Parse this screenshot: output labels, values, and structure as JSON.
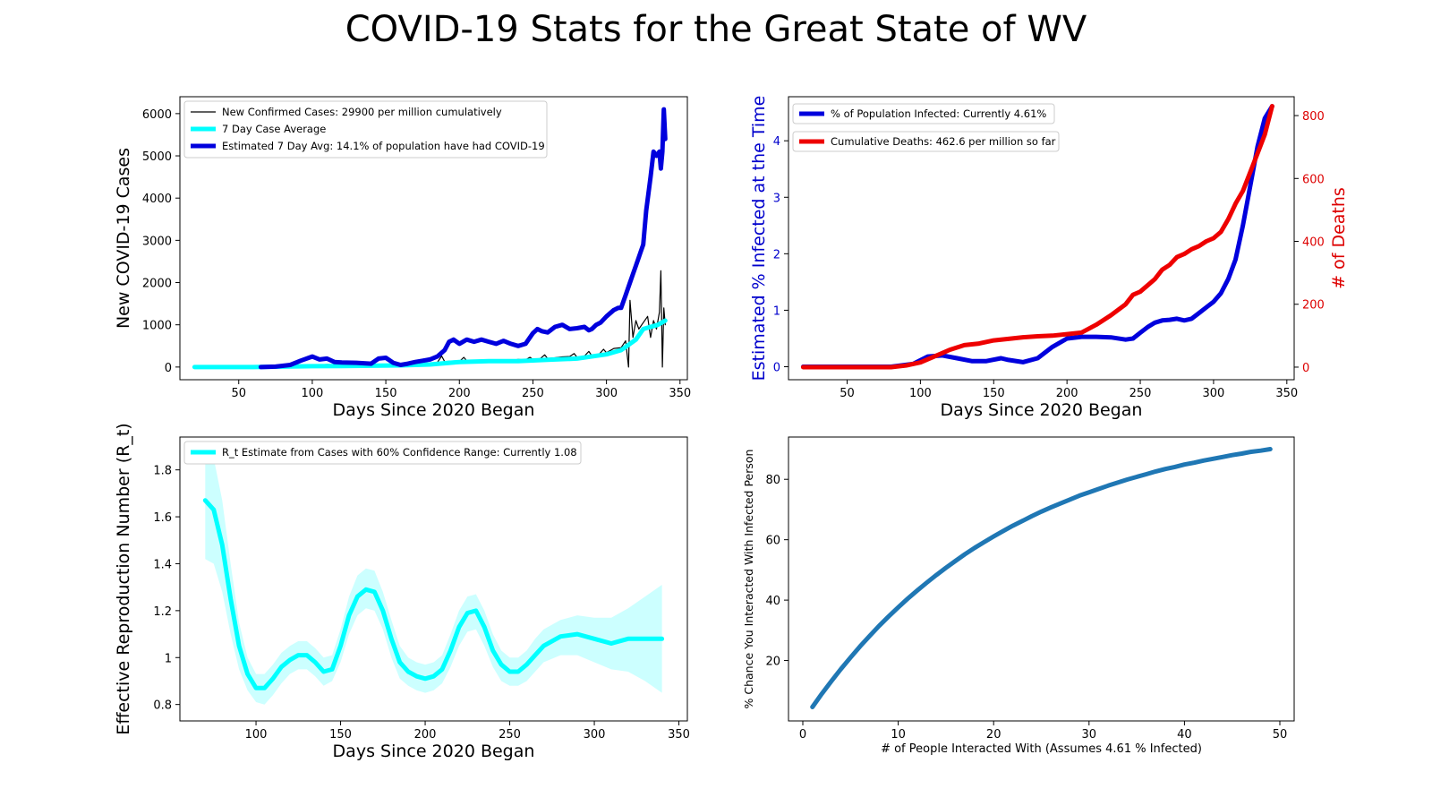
{
  "title": "COVID-19 Stats for the Great State of WV",
  "chart_data": [
    {
      "type": "line",
      "xlabel": "Days Since 2020 Began",
      "ylabel": "New COVID-19 Cases",
      "xlim": [
        10,
        355
      ],
      "ylim": [
        -300,
        6400
      ],
      "xticks": [
        50,
        100,
        150,
        200,
        250,
        300,
        350
      ],
      "yticks": [
        0,
        1000,
        2000,
        3000,
        4000,
        5000,
        6000
      ],
      "legend_position": "upper-left",
      "series": [
        {
          "name": "New Confirmed Cases: 29900 per million cumulatively",
          "color": "#000000",
          "x": [
            65,
            80,
            95,
            110,
            125,
            140,
            150,
            165,
            175,
            185,
            188,
            190,
            195,
            200,
            203,
            205,
            210,
            215,
            220,
            225,
            230,
            235,
            240,
            245,
            248,
            250,
            255,
            258,
            260,
            265,
            270,
            275,
            278,
            280,
            285,
            288,
            290,
            295,
            298,
            300,
            305,
            310,
            313,
            315,
            316,
            318,
            320,
            322,
            325,
            328,
            330,
            332,
            334,
            336,
            337,
            338,
            339,
            340
          ],
          "y": [
            5,
            15,
            40,
            60,
            50,
            45,
            60,
            50,
            70,
            110,
            260,
            130,
            140,
            130,
            230,
            150,
            140,
            160,
            170,
            150,
            170,
            160,
            180,
            170,
            230,
            180,
            200,
            290,
            200,
            220,
            240,
            250,
            320,
            230,
            260,
            370,
            270,
            300,
            420,
            340,
            440,
            460,
            620,
            0,
            1580,
            700,
            1100,
            900,
            1050,
            1200,
            700,
            1100,
            900,
            1300,
            2280,
            0,
            1400,
            1000
          ]
        },
        {
          "name": "7 Day Case Average",
          "color": "#00ffff",
          "x": [
            20,
            40,
            60,
            80,
            100,
            120,
            140,
            160,
            180,
            200,
            220,
            240,
            260,
            280,
            300,
            310,
            320,
            325,
            330,
            335,
            340
          ],
          "y": [
            0,
            0,
            0,
            10,
            20,
            25,
            30,
            40,
            60,
            120,
            140,
            140,
            170,
            200,
            300,
            400,
            650,
            900,
            950,
            1000,
            1100
          ]
        },
        {
          "name": "Estimated 7 Day Avg: 14.1% of population have had COVID-19",
          "color": "#0000dd",
          "x": [
            65,
            75,
            85,
            92,
            100,
            105,
            110,
            115,
            120,
            130,
            140,
            145,
            150,
            155,
            160,
            165,
            170,
            175,
            180,
            185,
            190,
            193,
            196,
            200,
            205,
            210,
            215,
            220,
            225,
            230,
            235,
            240,
            245,
            250,
            253,
            256,
            260,
            265,
            270,
            275,
            280,
            285,
            288,
            290,
            293,
            296,
            300,
            305,
            308,
            310,
            313,
            316,
            318,
            320,
            322,
            323,
            325,
            327,
            330,
            332,
            334,
            336,
            337,
            338,
            339,
            340
          ],
          "y": [
            0,
            10,
            50,
            150,
            250,
            180,
            200,
            120,
            110,
            100,
            80,
            200,
            220,
            100,
            50,
            80,
            120,
            150,
            180,
            250,
            400,
            600,
            650,
            550,
            650,
            600,
            650,
            600,
            550,
            620,
            550,
            500,
            550,
            800,
            900,
            850,
            820,
            950,
            1000,
            900,
            920,
            950,
            870,
            900,
            1000,
            1050,
            1200,
            1350,
            1400,
            1400,
            1700,
            2000,
            2200,
            2400,
            2600,
            2700,
            2900,
            3700,
            4500,
            5100,
            5000,
            5100,
            4700,
            5100,
            6100,
            5400
          ]
        }
      ]
    },
    {
      "type": "line",
      "xlabel": "Days Since 2020 Began",
      "ylabel": "Estimated % Infected at the Time",
      "ylabel_right": "# of Deaths",
      "xlim": [
        10,
        355
      ],
      "ylim": [
        -0.23,
        4.78
      ],
      "ylim_right": [
        -40,
        860
      ],
      "xticks": [
        50,
        100,
        150,
        200,
        250,
        300,
        350
      ],
      "yticks": [
        0,
        1,
        2,
        3,
        4
      ],
      "yticks_right": [
        0,
        200,
        400,
        600,
        800
      ],
      "legend_position": "upper-left",
      "series": [
        {
          "name": "% of Population Infected: Currently 4.61%",
          "color": "#0000dd",
          "axis": "left",
          "x": [
            20,
            80,
            95,
            105,
            115,
            125,
            135,
            145,
            155,
            160,
            170,
            180,
            190,
            200,
            210,
            220,
            230,
            240,
            245,
            250,
            255,
            260,
            265,
            270,
            275,
            280,
            285,
            290,
            295,
            300,
            305,
            310,
            315,
            320,
            325,
            330,
            335,
            340
          ],
          "y": [
            0,
            0,
            0.05,
            0.18,
            0.2,
            0.15,
            0.1,
            0.1,
            0.15,
            0.12,
            0.08,
            0.15,
            0.35,
            0.5,
            0.53,
            0.53,
            0.52,
            0.48,
            0.5,
            0.6,
            0.7,
            0.78,
            0.82,
            0.83,
            0.85,
            0.82,
            0.85,
            0.95,
            1.05,
            1.15,
            1.3,
            1.55,
            1.9,
            2.5,
            3.2,
            3.9,
            4.4,
            4.61
          ]
        },
        {
          "name": "Cumulative Deaths: 462.6 per million so far",
          "color": "#ee0000",
          "axis": "right",
          "x": [
            20,
            80,
            90,
            100,
            110,
            115,
            120,
            130,
            140,
            150,
            160,
            170,
            180,
            190,
            200,
            210,
            220,
            230,
            240,
            245,
            250,
            255,
            260,
            265,
            270,
            275,
            280,
            285,
            290,
            295,
            300,
            305,
            310,
            315,
            320,
            325,
            330,
            335,
            340
          ],
          "y": [
            0,
            0,
            5,
            15,
            35,
            45,
            55,
            70,
            75,
            85,
            90,
            95,
            98,
            100,
            105,
            110,
            135,
            165,
            200,
            230,
            240,
            260,
            280,
            310,
            325,
            350,
            360,
            375,
            385,
            400,
            410,
            430,
            470,
            520,
            560,
            620,
            680,
            740,
            830
          ]
        }
      ]
    },
    {
      "type": "line",
      "xlabel": "Days Since 2020 Began",
      "ylabel": "Effective Reproduction Number (R_t)",
      "xlim": [
        55,
        355
      ],
      "ylim": [
        0.73,
        1.94
      ],
      "xticks": [
        100,
        150,
        200,
        250,
        300,
        350
      ],
      "yticks": [
        0.8,
        1.0,
        1.2,
        1.4,
        1.6,
        1.8
      ],
      "legend_position": "upper-left",
      "series": [
        {
          "name": "R_t Estimate from Cases with 60% Confidence Range: Currently 1.08",
          "color": "#00ffff",
          "x": [
            70,
            75,
            80,
            85,
            90,
            95,
            100,
            105,
            110,
            115,
            120,
            125,
            130,
            135,
            140,
            145,
            150,
            155,
            160,
            165,
            170,
            175,
            180,
            185,
            190,
            195,
            200,
            205,
            210,
            215,
            220,
            225,
            230,
            235,
            240,
            245,
            250,
            255,
            260,
            265,
            270,
            280,
            290,
            300,
            310,
            320,
            330,
            340
          ],
          "y": [
            1.67,
            1.63,
            1.48,
            1.25,
            1.05,
            0.93,
            0.87,
            0.87,
            0.91,
            0.96,
            0.99,
            1.01,
            1.01,
            0.98,
            0.94,
            0.95,
            1.05,
            1.18,
            1.26,
            1.29,
            1.28,
            1.2,
            1.08,
            0.98,
            0.94,
            0.92,
            0.91,
            0.92,
            0.95,
            1.03,
            1.13,
            1.19,
            1.2,
            1.13,
            1.03,
            0.97,
            0.94,
            0.94,
            0.97,
            1.01,
            1.05,
            1.09,
            1.1,
            1.08,
            1.06,
            1.08,
            1.08,
            1.08
          ],
          "lower": [
            1.42,
            1.4,
            1.28,
            1.1,
            0.95,
            0.86,
            0.81,
            0.8,
            0.84,
            0.89,
            0.93,
            0.95,
            0.95,
            0.92,
            0.88,
            0.9,
            0.98,
            1.1,
            1.18,
            1.21,
            1.2,
            1.12,
            1.0,
            0.91,
            0.88,
            0.86,
            0.85,
            0.86,
            0.89,
            0.96,
            1.05,
            1.11,
            1.12,
            1.05,
            0.96,
            0.9,
            0.88,
            0.88,
            0.9,
            0.94,
            0.98,
            1.01,
            1.01,
            0.98,
            0.95,
            0.94,
            0.9,
            0.85
          ],
          "upper": [
            1.9,
            1.85,
            1.67,
            1.4,
            1.15,
            1.0,
            0.93,
            0.93,
            0.97,
            1.02,
            1.05,
            1.07,
            1.07,
            1.04,
            1.0,
            1.01,
            1.12,
            1.26,
            1.35,
            1.38,
            1.37,
            1.28,
            1.16,
            1.05,
            1.0,
            0.98,
            0.97,
            0.98,
            1.01,
            1.1,
            1.2,
            1.26,
            1.27,
            1.2,
            1.1,
            1.03,
            1.0,
            1.0,
            1.03,
            1.08,
            1.12,
            1.16,
            1.18,
            1.17,
            1.17,
            1.21,
            1.26,
            1.31
          ]
        }
      ]
    },
    {
      "type": "line",
      "xlabel": "# of People Interacted With (Assumes 4.61 % Infected)",
      "ylabel": "% Chance You Interacted With Infected Person",
      "xlim": [
        -1.5,
        51.5
      ],
      "ylim": [
        0,
        94
      ],
      "xticks": [
        0,
        10,
        20,
        30,
        40,
        50
      ],
      "yticks": [
        20,
        40,
        60,
        80
      ],
      "series": [
        {
          "color": "#1f77b4",
          "x": [
            1,
            2,
            3,
            4,
            5,
            6,
            7,
            8,
            9,
            10,
            11,
            12,
            13,
            14,
            15,
            16,
            17,
            18,
            19,
            20,
            21,
            22,
            23,
            24,
            25,
            26,
            27,
            28,
            29,
            30,
            31,
            32,
            33,
            34,
            35,
            36,
            37,
            38,
            39,
            40,
            41,
            42,
            43,
            44,
            45,
            46,
            47,
            48,
            49
          ],
          "y": [
            4.61,
            9.0,
            13.2,
            17.2,
            21.0,
            24.7,
            28.1,
            31.5,
            34.6,
            37.6,
            40.5,
            43.2,
            45.8,
            48.3,
            50.7,
            53.0,
            55.2,
            57.3,
            59.2,
            61.1,
            62.9,
            64.6,
            66.2,
            67.8,
            69.3,
            70.7,
            72.0,
            73.3,
            74.6,
            75.7,
            76.8,
            77.9,
            78.9,
            79.9,
            80.8,
            81.7,
            82.6,
            83.4,
            84.1,
            84.9,
            85.5,
            86.2,
            86.8,
            87.4,
            88.0,
            88.5,
            89.1,
            89.5,
            90.0
          ]
        }
      ]
    }
  ]
}
